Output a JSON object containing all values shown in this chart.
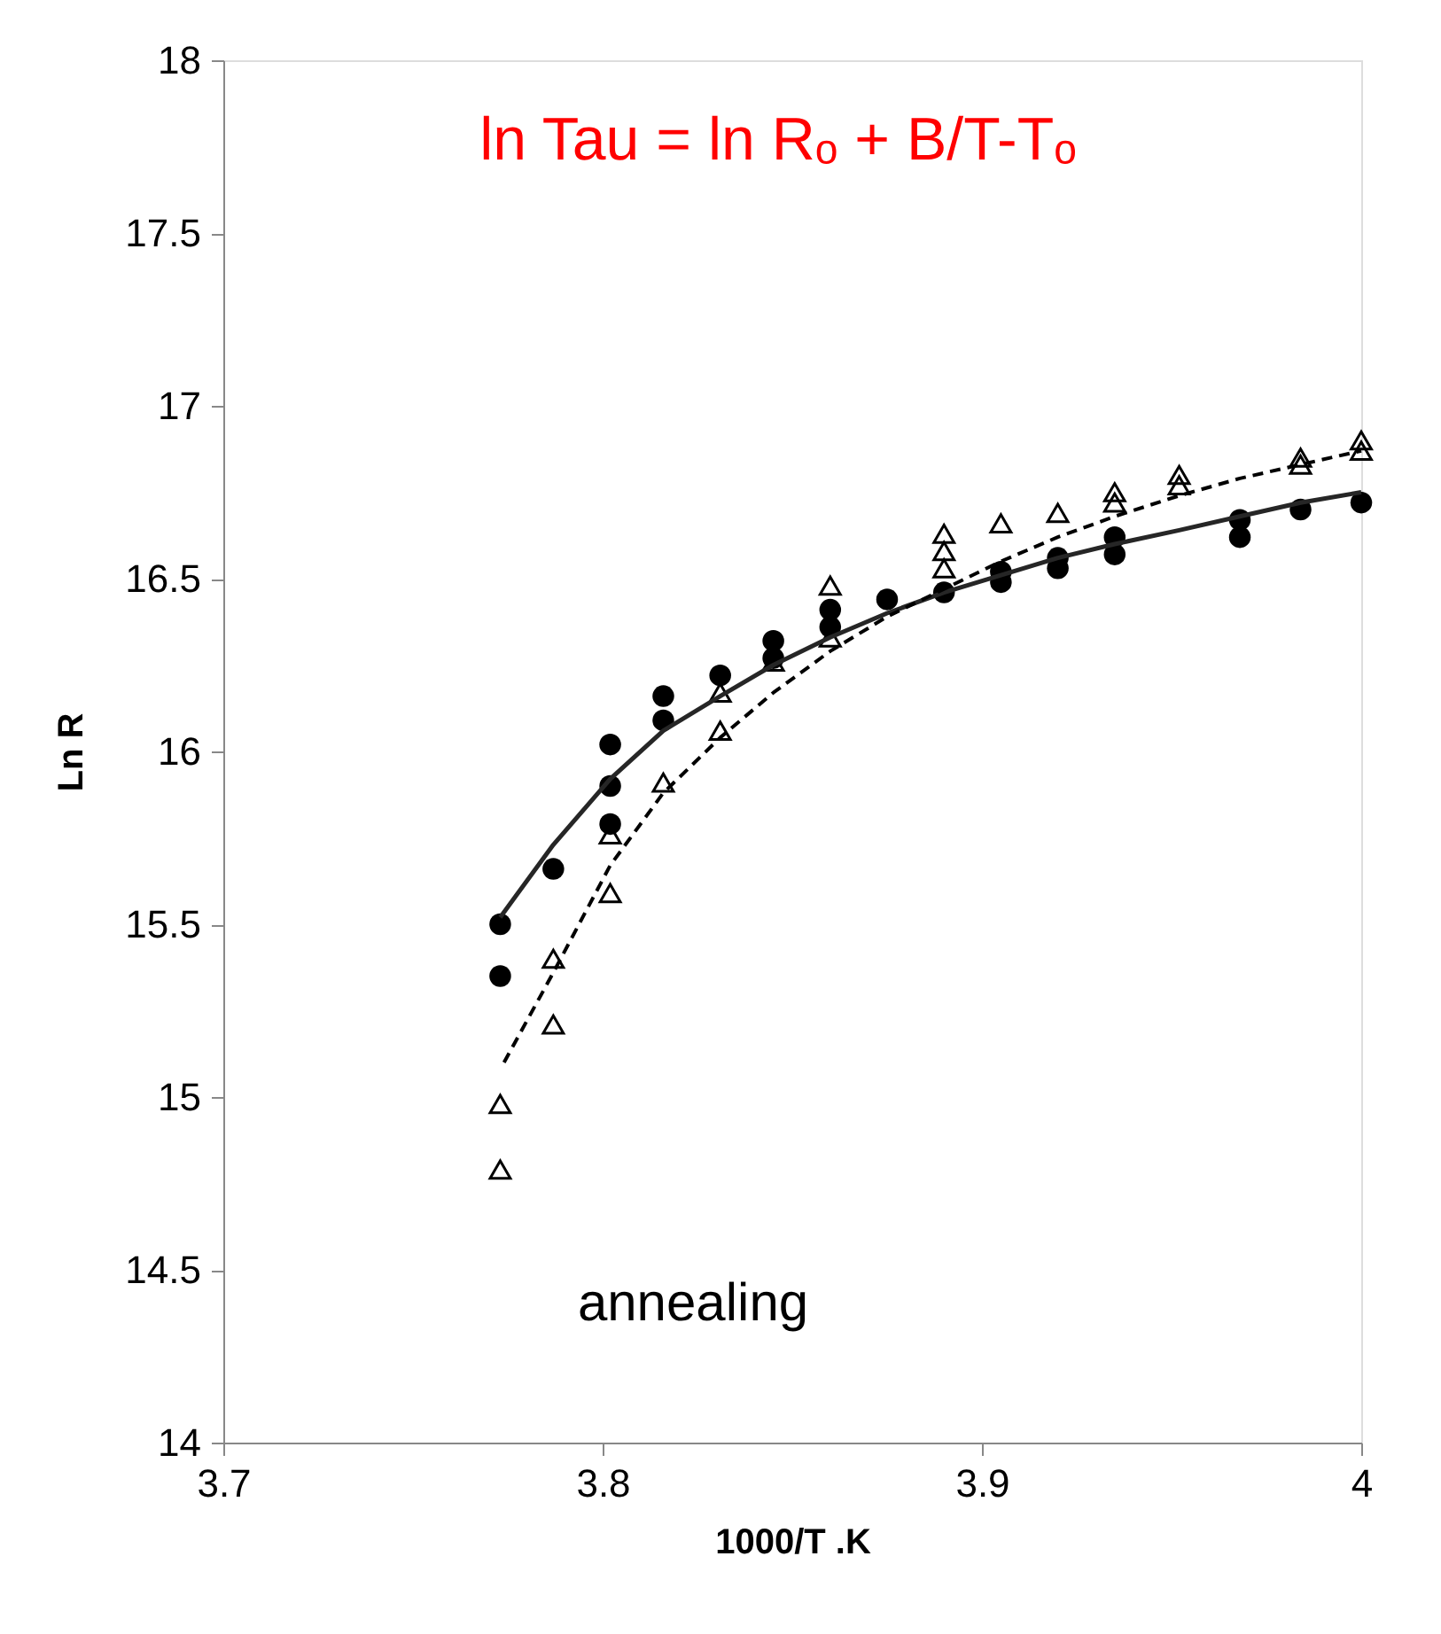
{
  "chart_data": {
    "type": "scatter",
    "xlabel": "1000/T .K",
    "ylabel": "Ln R",
    "xlim": [
      3.7,
      4.0
    ],
    "xticks": [
      3.7,
      3.8,
      3.9,
      4
    ],
    "ylim": [
      14,
      18
    ],
    "yticks": [
      14,
      14.5,
      15,
      15.5,
      16,
      16.5,
      17,
      17.5,
      18
    ],
    "grid": false,
    "legend": false,
    "annotations": [
      "ln Tau = ln  Rₒ +  B/T-Tₒ",
      "annealing"
    ],
    "series": [
      {
        "marker": "circle",
        "color": "#000000",
        "x": [
          3.773,
          3.773,
          3.787,
          3.802,
          3.802,
          3.802,
          3.816,
          3.816,
          3.831,
          3.845,
          3.845,
          3.86,
          3.86,
          3.875,
          3.89,
          3.905,
          3.905,
          3.92,
          3.92,
          3.935,
          3.935,
          3.968,
          3.968,
          3.984,
          4.0
        ],
        "values": [
          15.5,
          15.35,
          15.66,
          16.02,
          15.9,
          15.79,
          16.16,
          16.09,
          16.22,
          16.32,
          16.27,
          16.41,
          16.36,
          16.44,
          16.46,
          16.52,
          16.49,
          16.56,
          16.53,
          16.62,
          16.57,
          16.67,
          16.62,
          16.7,
          16.72
        ]
      },
      {
        "marker": "triangle",
        "color": "#000000",
        "x": [
          3.773,
          3.773,
          3.787,
          3.787,
          3.802,
          3.802,
          3.816,
          3.831,
          3.831,
          3.845,
          3.86,
          3.86,
          3.89,
          3.89,
          3.89,
          3.905,
          3.92,
          3.935,
          3.935,
          3.952,
          3.952,
          3.984,
          3.984,
          4.0,
          4.0
        ],
        "values": [
          14.98,
          14.79,
          15.21,
          15.4,
          15.59,
          15.76,
          15.91,
          16.06,
          16.17,
          16.26,
          16.33,
          16.48,
          16.63,
          16.58,
          16.53,
          16.66,
          16.69,
          16.75,
          16.72,
          16.8,
          16.77,
          16.85,
          16.83,
          16.9,
          16.87
        ]
      },
      {
        "type": "line",
        "line_style": "solid",
        "color": "#262626",
        "x": [
          3.773,
          3.787,
          3.802,
          3.816,
          3.831,
          3.845,
          3.86,
          3.875,
          3.89,
          3.905,
          3.92,
          3.935,
          3.952,
          3.968,
          3.984,
          4.0
        ],
        "values": [
          15.52,
          15.73,
          15.92,
          16.06,
          16.16,
          16.25,
          16.33,
          16.4,
          16.46,
          16.51,
          16.56,
          16.6,
          16.64,
          16.68,
          16.72,
          16.75
        ]
      },
      {
        "type": "line",
        "line_style": "dashed",
        "color": "#000000",
        "x": [
          3.774,
          3.787,
          3.802,
          3.816,
          3.831,
          3.845,
          3.86,
          3.875,
          3.89,
          3.905,
          3.92,
          3.935,
          3.952,
          3.968,
          3.984,
          4.0
        ],
        "values": [
          15.1,
          15.36,
          15.67,
          15.88,
          16.04,
          16.17,
          16.29,
          16.39,
          16.47,
          16.55,
          16.62,
          16.68,
          16.74,
          16.79,
          16.83,
          16.87
        ]
      }
    ]
  }
}
